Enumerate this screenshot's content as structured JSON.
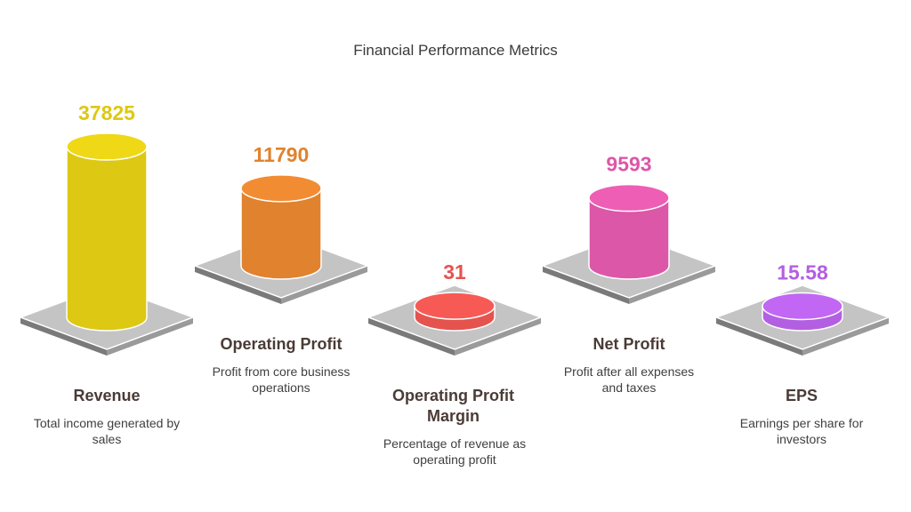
{
  "chart_data": {
    "type": "bar",
    "title": "Financial Performance Metrics",
    "categories": [
      "Revenue",
      "Operating Profit",
      "Operating Profit Margin",
      "Net Profit",
      "EPS"
    ],
    "values": [
      37825,
      11790,
      31,
      9593,
      15.58
    ],
    "value_labels": [
      "37825",
      "11790",
      "31",
      "9593",
      "15.58"
    ],
    "descriptions": [
      "Total income generated by sales",
      "Profit from core business operations",
      "Percentage of revenue as operating profit",
      "Profit after all expenses and taxes",
      "Earnings per share for investors"
    ],
    "colors": [
      "#ddc813",
      "#e0822e",
      "#e5534f",
      "#dc57a8",
      "#b35fe2"
    ],
    "axis": "none",
    "grid": false,
    "legend": "none"
  }
}
